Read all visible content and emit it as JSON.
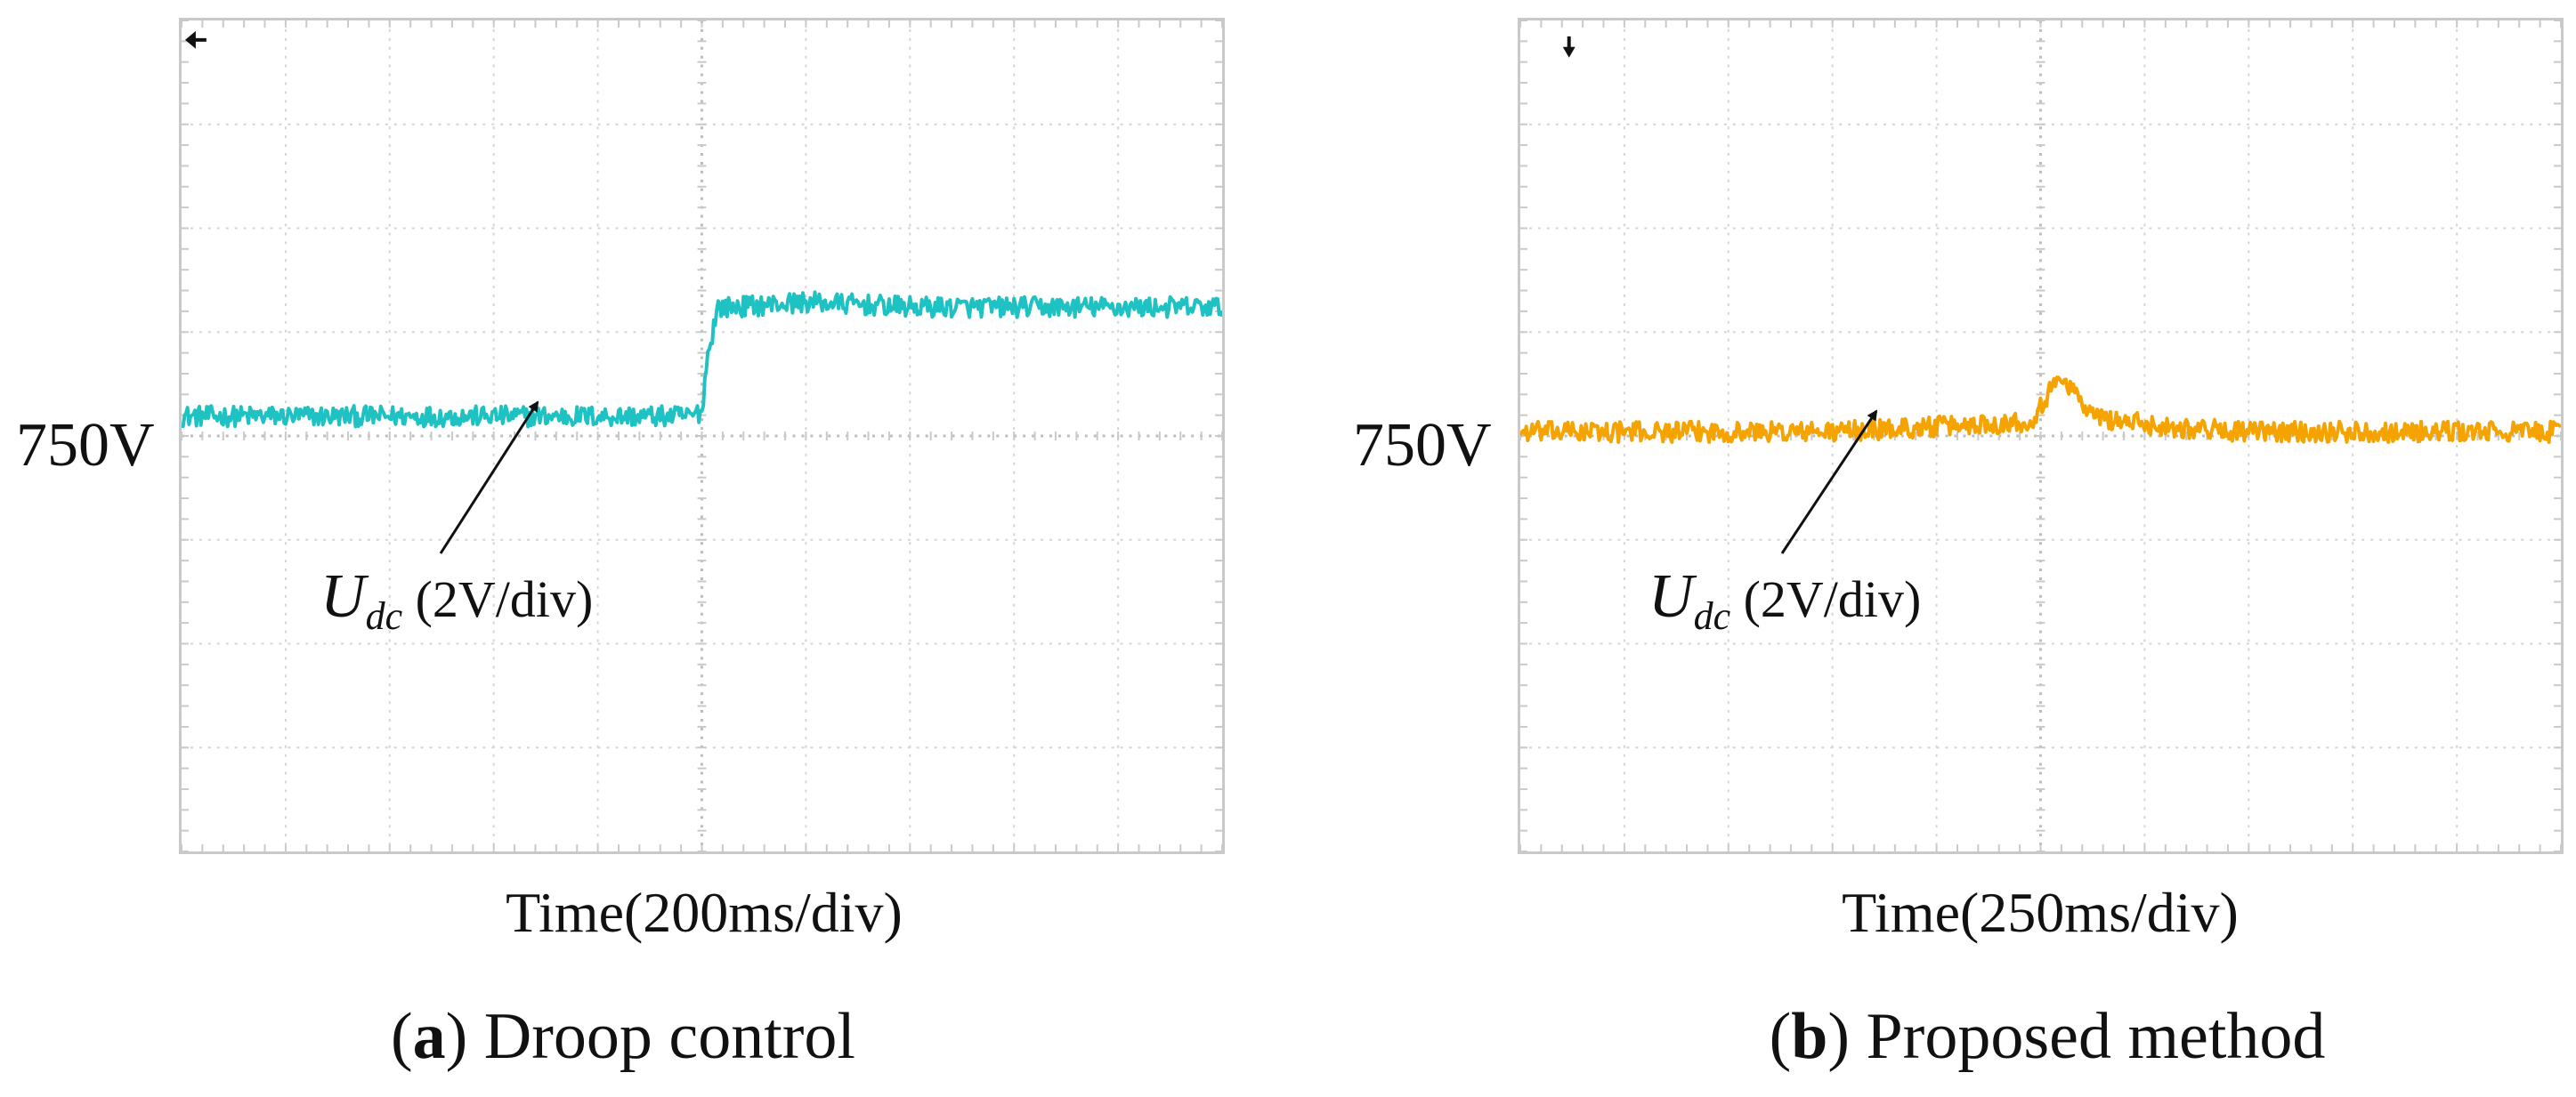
{
  "chart_data": [
    {
      "type": "line",
      "panel_letter": "a",
      "caption": "Droop control",
      "xlabel": "Time(200ms/div)",
      "time_per_div_ms": 200,
      "volts_per_div": 2,
      "divisions": {
        "x": 10,
        "y": 8
      },
      "reference_label": "750V",
      "reference_level_div": 0,
      "signal": {
        "name": "U",
        "subscript": "dc",
        "scale": "(2V/div)",
        "color": "#1fc2c2"
      },
      "series_div": {
        "x": [
          0,
          0.5,
          1,
          2,
          3,
          4,
          4.9,
          5.0,
          5.05,
          5.15,
          5.3,
          6,
          7,
          8,
          9,
          10
        ],
        "y": [
          0.15,
          0.15,
          0.15,
          0.15,
          0.15,
          0.15,
          0.15,
          0.2,
          0.7,
          1.2,
          1.2,
          1.25,
          1.2,
          1.2,
          1.2,
          1.2
        ]
      },
      "noise_div": 0.1,
      "xlim": [
        0,
        10
      ],
      "ylim": [
        -4,
        4
      ]
    },
    {
      "type": "line",
      "panel_letter": "b",
      "caption": "Proposed method",
      "xlabel": "Time(250ms/div)",
      "time_per_div_ms": 250,
      "volts_per_div": 2,
      "divisions": {
        "x": 10,
        "y": 8
      },
      "reference_label": "750V",
      "reference_level_div": 0,
      "signal": {
        "name": "U",
        "subscript": "dc",
        "scale": "(2V/div)",
        "color": "#f5a300"
      },
      "series_div": {
        "x": [
          0,
          1,
          2,
          3,
          4,
          4.9,
          5.2,
          5.5,
          5.8,
          6.2,
          7,
          8,
          9,
          10
        ],
        "y": [
          0.0,
          0.0,
          0.0,
          0.0,
          0.05,
          0.1,
          0.55,
          0.15,
          0.1,
          0.05,
          0.0,
          0.0,
          0.0,
          0.0
        ]
      },
      "noise_div": 0.1,
      "xlim": [
        0,
        10
      ],
      "ylim": [
        -4,
        4
      ]
    }
  ]
}
